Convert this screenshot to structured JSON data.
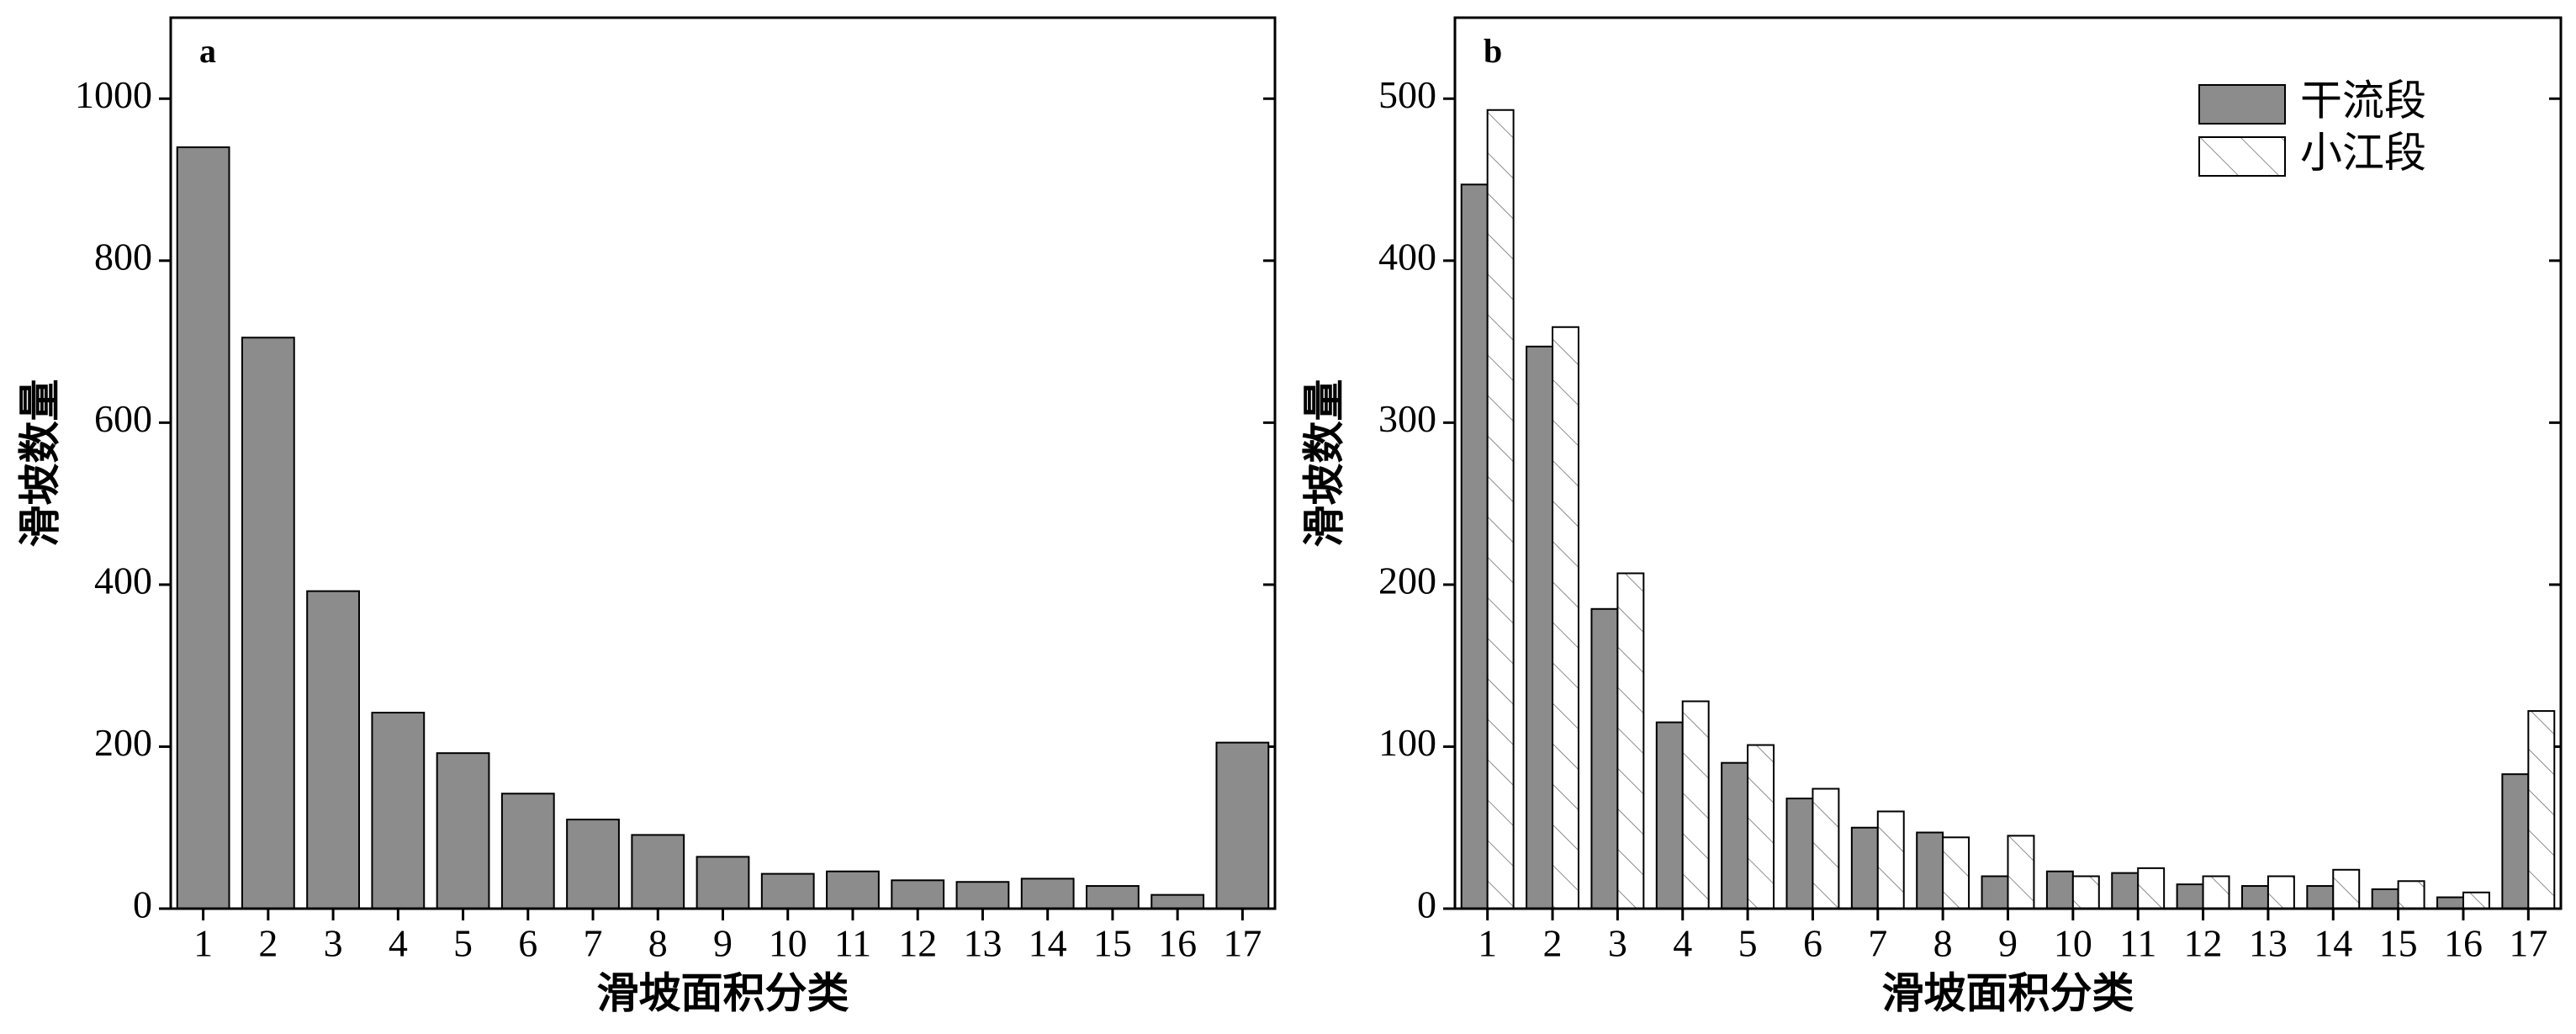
{
  "chart_data": [
    {
      "type": "bar",
      "panel_label": "a",
      "categories": [
        "1",
        "2",
        "3",
        "4",
        "5",
        "6",
        "7",
        "8",
        "9",
        "10",
        "11",
        "12",
        "13",
        "14",
        "15",
        "16",
        "17"
      ],
      "values": [
        940,
        705,
        392,
        242,
        192,
        142,
        110,
        91,
        64,
        43,
        46,
        35,
        33,
        37,
        28,
        17,
        205
      ],
      "color": "#8c8c8c",
      "ylim": [
        0,
        1100
      ],
      "yticks": [
        0,
        200,
        400,
        600,
        800,
        1000
      ],
      "xlabel": "滑坡面积分类",
      "ylabel": "滑坡数量"
    },
    {
      "type": "bar",
      "panel_label": "b",
      "categories": [
        "1",
        "2",
        "3",
        "4",
        "5",
        "6",
        "7",
        "8",
        "9",
        "10",
        "11",
        "12",
        "13",
        "14",
        "15",
        "16",
        "17"
      ],
      "series": [
        {
          "name": "干流段",
          "color": "#8c8c8c",
          "values": [
            447,
            347,
            185,
            115,
            90,
            68,
            50,
            47,
            20,
            23,
            22,
            15,
            14,
            14,
            12,
            7,
            83
          ]
        },
        {
          "name": "小江段",
          "color": "#ffffff",
          "hatch": true,
          "values": [
            493,
            359,
            207,
            128,
            101,
            74,
            60,
            44,
            45,
            20,
            25,
            20,
            20,
            24,
            17,
            10,
            122
          ]
        }
      ],
      "ylim": [
        0,
        550
      ],
      "yticks": [
        0,
        100,
        200,
        300,
        400,
        500
      ],
      "legend": "upper right",
      "xlabel": "滑坡面积分类",
      "ylabel": "滑坡数量"
    }
  ]
}
